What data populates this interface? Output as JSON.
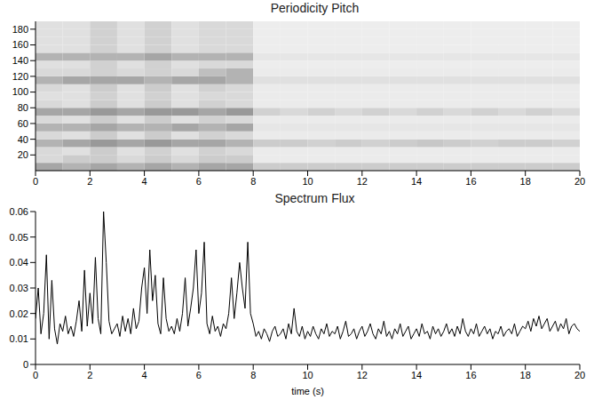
{
  "chart_data": [
    {
      "type": "heatmap",
      "title": "Periodicity Pitch",
      "xlim": [
        0,
        20
      ],
      "ylim": [
        0,
        190
      ],
      "xticks": [
        0,
        2,
        4,
        6,
        8,
        10,
        12,
        14,
        16,
        18,
        20
      ],
      "yticks": [
        20,
        40,
        60,
        80,
        100,
        120,
        140,
        160,
        180
      ],
      "color": "#000000",
      "zlim": [
        0,
        1
      ],
      "grid": false,
      "x": [
        0,
        1,
        2,
        3,
        4,
        5,
        6,
        7,
        8,
        9,
        10,
        11,
        12,
        13,
        14,
        15,
        16,
        17,
        18,
        19,
        20
      ],
      "y": [
        0,
        10,
        20,
        30,
        40,
        50,
        60,
        70,
        80,
        90,
        100,
        110,
        120,
        130,
        140,
        150,
        160,
        170,
        180,
        190
      ],
      "cells": [
        [
          0.35,
          0.3,
          0.35,
          0.3,
          0.35,
          0.3,
          0.35,
          0.35,
          0.2,
          0.2,
          0.2,
          0.2,
          0.2,
          0.2,
          0.2,
          0.2,
          0.2,
          0.2,
          0.2,
          0.2
        ],
        [
          0.15,
          0.2,
          0.2,
          0.15,
          0.2,
          0.15,
          0.2,
          0.2,
          0.08,
          0.08,
          0.08,
          0.08,
          0.08,
          0.08,
          0.08,
          0.08,
          0.08,
          0.08,
          0.08,
          0.08
        ],
        [
          0.15,
          0.12,
          0.2,
          0.12,
          0.18,
          0.12,
          0.18,
          0.15,
          0.08,
          0.08,
          0.08,
          0.08,
          0.08,
          0.08,
          0.08,
          0.08,
          0.08,
          0.08,
          0.08,
          0.08
        ],
        [
          0.3,
          0.35,
          0.4,
          0.35,
          0.4,
          0.35,
          0.35,
          0.3,
          0.2,
          0.2,
          0.18,
          0.2,
          0.18,
          0.2,
          0.22,
          0.2,
          0.18,
          0.2,
          0.2,
          0.18
        ],
        [
          0.15,
          0.12,
          0.2,
          0.12,
          0.2,
          0.12,
          0.18,
          0.15,
          0.08,
          0.08,
          0.08,
          0.08,
          0.08,
          0.08,
          0.08,
          0.08,
          0.08,
          0.08,
          0.08,
          0.08
        ],
        [
          0.3,
          0.3,
          0.35,
          0.3,
          0.3,
          0.35,
          0.3,
          0.35,
          0.1,
          0.1,
          0.1,
          0.1,
          0.1,
          0.1,
          0.1,
          0.1,
          0.1,
          0.1,
          0.1,
          0.1
        ],
        [
          0.15,
          0.12,
          0.2,
          0.12,
          0.2,
          0.12,
          0.18,
          0.15,
          0.08,
          0.08,
          0.08,
          0.08,
          0.08,
          0.08,
          0.08,
          0.08,
          0.08,
          0.08,
          0.08,
          0.08
        ],
        [
          0.35,
          0.35,
          0.4,
          0.35,
          0.4,
          0.4,
          0.35,
          0.4,
          0.18,
          0.15,
          0.18,
          0.15,
          0.18,
          0.15,
          0.18,
          0.15,
          0.18,
          0.15,
          0.18,
          0.15
        ],
        [
          0.15,
          0.12,
          0.2,
          0.12,
          0.2,
          0.12,
          0.18,
          0.15,
          0.08,
          0.08,
          0.08,
          0.08,
          0.08,
          0.08,
          0.08,
          0.08,
          0.08,
          0.08,
          0.08,
          0.08
        ],
        [
          0.12,
          0.12,
          0.18,
          0.12,
          0.18,
          0.12,
          0.15,
          0.15,
          0.08,
          0.08,
          0.08,
          0.08,
          0.08,
          0.08,
          0.08,
          0.08,
          0.08,
          0.08,
          0.08,
          0.08
        ],
        [
          0.15,
          0.12,
          0.2,
          0.12,
          0.2,
          0.12,
          0.18,
          0.15,
          0.08,
          0.08,
          0.08,
          0.08,
          0.08,
          0.08,
          0.08,
          0.08,
          0.08,
          0.08,
          0.08,
          0.08
        ],
        [
          0.3,
          0.35,
          0.35,
          0.35,
          0.3,
          0.35,
          0.35,
          0.3,
          0.12,
          0.12,
          0.12,
          0.12,
          0.12,
          0.12,
          0.12,
          0.12,
          0.12,
          0.12,
          0.12,
          0.12
        ],
        [
          0.15,
          0.15,
          0.18,
          0.15,
          0.18,
          0.15,
          0.25,
          0.3,
          0.08,
          0.08,
          0.08,
          0.08,
          0.08,
          0.08,
          0.08,
          0.08,
          0.08,
          0.08,
          0.08,
          0.08
        ],
        [
          0.12,
          0.12,
          0.18,
          0.12,
          0.18,
          0.12,
          0.15,
          0.15,
          0.07,
          0.07,
          0.07,
          0.07,
          0.07,
          0.07,
          0.07,
          0.07,
          0.07,
          0.07,
          0.07,
          0.07
        ],
        [
          0.3,
          0.3,
          0.3,
          0.3,
          0.35,
          0.3,
          0.3,
          0.3,
          0.1,
          0.1,
          0.1,
          0.1,
          0.1,
          0.1,
          0.1,
          0.1,
          0.1,
          0.1,
          0.1,
          0.1
        ],
        [
          0.12,
          0.12,
          0.18,
          0.12,
          0.18,
          0.12,
          0.15,
          0.15,
          0.07,
          0.07,
          0.07,
          0.07,
          0.07,
          0.07,
          0.07,
          0.07,
          0.07,
          0.07,
          0.07,
          0.07
        ],
        [
          0.12,
          0.12,
          0.18,
          0.12,
          0.18,
          0.12,
          0.15,
          0.15,
          0.07,
          0.07,
          0.07,
          0.07,
          0.07,
          0.07,
          0.07,
          0.07,
          0.07,
          0.07,
          0.07,
          0.07
        ],
        [
          0.12,
          0.12,
          0.18,
          0.12,
          0.18,
          0.12,
          0.15,
          0.15,
          0.07,
          0.07,
          0.07,
          0.07,
          0.07,
          0.07,
          0.07,
          0.07,
          0.07,
          0.07,
          0.07,
          0.07
        ],
        [
          0.12,
          0.12,
          0.18,
          0.12,
          0.18,
          0.12,
          0.15,
          0.15,
          0.07,
          0.07,
          0.07,
          0.07,
          0.07,
          0.07,
          0.07,
          0.07,
          0.07,
          0.07,
          0.07,
          0.07
        ]
      ]
    },
    {
      "type": "line",
      "title": "Spectrum Flux",
      "x_label": "time (s)",
      "xlim": [
        0,
        20
      ],
      "ylim": [
        0,
        0.06
      ],
      "xticks": [
        0,
        2,
        4,
        6,
        8,
        10,
        12,
        14,
        16,
        18,
        20
      ],
      "yticks": [
        0,
        0.01,
        0.02,
        0.03,
        0.04,
        0.05,
        0.06
      ],
      "color": "#000000",
      "grid": false,
      "x": [
        0,
        0.1,
        0.2,
        0.3,
        0.4,
        0.5,
        0.6,
        0.7,
        0.8,
        0.9,
        1,
        1.1,
        1.2,
        1.3,
        1.4,
        1.5,
        1.6,
        1.7,
        1.8,
        1.9,
        2,
        2.1,
        2.2,
        2.3,
        2.4,
        2.5,
        2.6,
        2.7,
        2.8,
        2.9,
        3,
        3.1,
        3.2,
        3.3,
        3.4,
        3.5,
        3.6,
        3.7,
        3.8,
        3.9,
        4,
        4.1,
        4.2,
        4.3,
        4.4,
        4.5,
        4.6,
        4.7,
        4.8,
        4.9,
        5,
        5.1,
        5.2,
        5.3,
        5.4,
        5.5,
        5.6,
        5.7,
        5.8,
        5.9,
        6,
        6.1,
        6.2,
        6.3,
        6.4,
        6.5,
        6.6,
        6.7,
        6.8,
        6.9,
        7,
        7.1,
        7.2,
        7.3,
        7.4,
        7.5,
        7.6,
        7.7,
        7.8,
        7.9,
        8,
        8.1,
        8.2,
        8.3,
        8.4,
        8.5,
        8.6,
        8.7,
        8.8,
        8.9,
        9,
        9.1,
        9.2,
        9.3,
        9.4,
        9.5,
        9.6,
        9.7,
        9.8,
        9.9,
        10,
        10.1,
        10.2,
        10.3,
        10.4,
        10.5,
        10.6,
        10.7,
        10.8,
        10.9,
        11,
        11.1,
        11.2,
        11.3,
        11.4,
        11.5,
        11.6,
        11.7,
        11.8,
        11.9,
        12,
        12.1,
        12.2,
        12.3,
        12.4,
        12.5,
        12.6,
        12.7,
        12.8,
        12.9,
        13,
        13.1,
        13.2,
        13.3,
        13.4,
        13.5,
        13.6,
        13.7,
        13.8,
        13.9,
        14,
        14.1,
        14.2,
        14.3,
        14.4,
        14.5,
        14.6,
        14.7,
        14.8,
        14.9,
        15,
        15.1,
        15.2,
        15.3,
        15.4,
        15.5,
        15.6,
        15.7,
        15.8,
        15.9,
        16,
        16.1,
        16.2,
        16.3,
        16.4,
        16.5,
        16.6,
        16.7,
        16.8,
        16.9,
        17,
        17.1,
        17.2,
        17.3,
        17.4,
        17.5,
        17.6,
        17.7,
        17.8,
        17.9,
        18,
        18.1,
        18.2,
        18.3,
        18.4,
        18.5,
        18.6,
        18.7,
        18.8,
        18.9,
        19,
        19.1,
        19.2,
        19.3,
        19.4,
        19.5,
        19.6,
        19.7,
        19.8,
        19.9,
        20
      ],
      "values": [
        0.018,
        0.03,
        0.012,
        0.02,
        0.043,
        0.01,
        0.033,
        0.014,
        0.008,
        0.016,
        0.013,
        0.019,
        0.012,
        0.015,
        0.011,
        0.017,
        0.025,
        0.013,
        0.037,
        0.015,
        0.028,
        0.016,
        0.042,
        0.018,
        0.012,
        0.06,
        0.04,
        0.017,
        0.012,
        0.014,
        0.016,
        0.011,
        0.019,
        0.013,
        0.018,
        0.012,
        0.022,
        0.014,
        0.017,
        0.03,
        0.038,
        0.02,
        0.045,
        0.025,
        0.035,
        0.016,
        0.012,
        0.034,
        0.018,
        0.013,
        0.015,
        0.012,
        0.018,
        0.013,
        0.02,
        0.034,
        0.015,
        0.022,
        0.03,
        0.045,
        0.02,
        0.028,
        0.048,
        0.016,
        0.012,
        0.019,
        0.013,
        0.015,
        0.011,
        0.016,
        0.014,
        0.02,
        0.034,
        0.018,
        0.028,
        0.04,
        0.03,
        0.022,
        0.048,
        0.02,
        0.016,
        0.011,
        0.013,
        0.01,
        0.014,
        0.012,
        0.009,
        0.013,
        0.015,
        0.011,
        0.012,
        0.014,
        0.01,
        0.016,
        0.012,
        0.022,
        0.013,
        0.011,
        0.015,
        0.01,
        0.013,
        0.011,
        0.015,
        0.012,
        0.01,
        0.014,
        0.012,
        0.016,
        0.011,
        0.013,
        0.012,
        0.015,
        0.01,
        0.013,
        0.017,
        0.011,
        0.012,
        0.014,
        0.01,
        0.013,
        0.015,
        0.011,
        0.013,
        0.016,
        0.012,
        0.01,
        0.014,
        0.012,
        0.017,
        0.011,
        0.013,
        0.01,
        0.014,
        0.012,
        0.016,
        0.011,
        0.013,
        0.015,
        0.01,
        0.012,
        0.014,
        0.011,
        0.016,
        0.012,
        0.013,
        0.01,
        0.015,
        0.012,
        0.014,
        0.011,
        0.013,
        0.016,
        0.012,
        0.014,
        0.011,
        0.015,
        0.012,
        0.018,
        0.013,
        0.011,
        0.014,
        0.012,
        0.016,
        0.011,
        0.013,
        0.015,
        0.012,
        0.014,
        0.01,
        0.013,
        0.012,
        0.015,
        0.011,
        0.013,
        0.014,
        0.012,
        0.016,
        0.011,
        0.013,
        0.015,
        0.014,
        0.017,
        0.013,
        0.018,
        0.015,
        0.019,
        0.014,
        0.016,
        0.018,
        0.013,
        0.015,
        0.017,
        0.013,
        0.016,
        0.014,
        0.018,
        0.012,
        0.015,
        0.016,
        0.014,
        0.013
      ]
    }
  ]
}
